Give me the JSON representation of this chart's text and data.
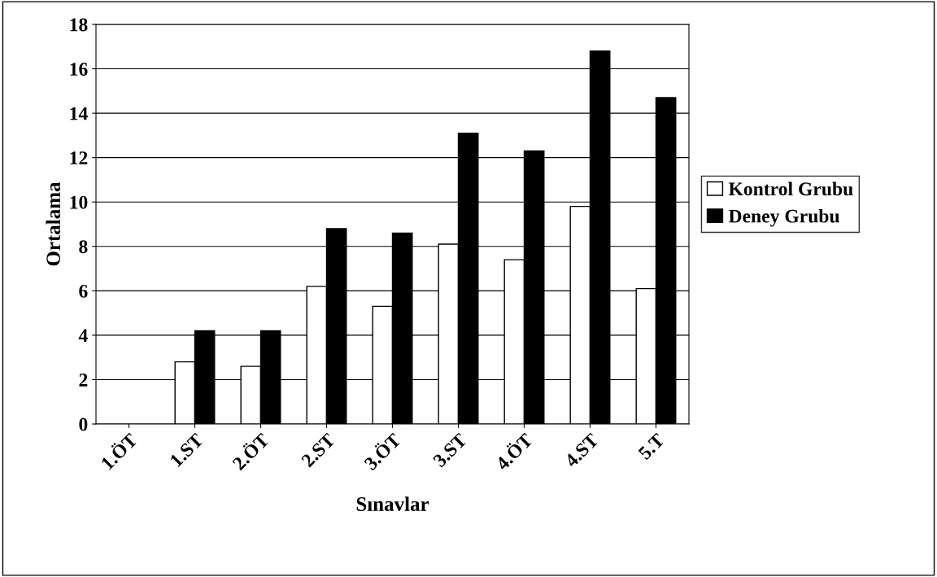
{
  "chart_data": {
    "type": "bar",
    "xlabel": "Sınavlar",
    "ylabel": "Ortalama",
    "categories": [
      "1.ÖT",
      "1.ST",
      "2.ÖT",
      "2.ST",
      "3.ÖT",
      "3.ST",
      "4.ÖT",
      "4.ST",
      "5.T"
    ],
    "series": [
      {
        "name": "Kontrol Grubu",
        "color": "#ffffff",
        "values": [
          0,
          2.8,
          2.6,
          6.2,
          5.3,
          8.1,
          7.4,
          9.8,
          6.1
        ]
      },
      {
        "name": "Deney Grubu",
        "color": "#000000",
        "values": [
          0,
          4.2,
          4.2,
          8.8,
          8.6,
          13.1,
          12.3,
          16.8,
          14.7
        ]
      }
    ],
    "ylim": [
      0,
      18
    ],
    "yticks": [
      0,
      2,
      4,
      6,
      8,
      10,
      12,
      14,
      16,
      18
    ],
    "grid": "y",
    "legend": "right"
  }
}
